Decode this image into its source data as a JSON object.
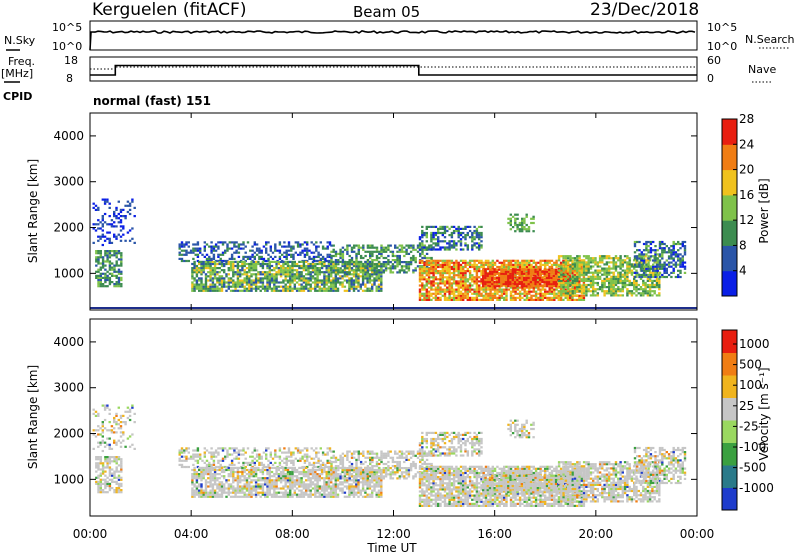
{
  "header": {
    "station": "Kerguelen (fitACF)",
    "beam": "Beam 05",
    "date": "23/Dec/2018"
  },
  "labels": {
    "nsky": "N.Sky",
    "nsearch": "N.Search",
    "freq_line1": "Freq.",
    "freq_line2": "[MHz]",
    "nave": "Nave",
    "cpid": "CPID",
    "cpid_value": "normal (fast) 151",
    "nsky_ticks": [
      "10^5",
      "10^0"
    ],
    "nsearch_ticks": [
      "10^5",
      "10^0"
    ],
    "freq_ticks": [
      "18",
      "8"
    ],
    "nave_ticks": [
      "60",
      "0"
    ]
  },
  "chart_data": [
    {
      "type": "heatmap",
      "name": "power",
      "ylabel": "Slant Range [km]",
      "xlabel": "Time UT",
      "x_ticks": [
        "00:00",
        "04:00",
        "08:00",
        "12:00",
        "16:00",
        "20:00",
        "00:00"
      ],
      "y_ticks": [
        "1000",
        "2000",
        "3000",
        "4000"
      ],
      "xlim": [
        0,
        24
      ],
      "ylim": [
        200,
        4500
      ],
      "colorbar": {
        "label": "Power [dB]",
        "ticks": [
          "4",
          "8",
          "12",
          "16",
          "20",
          "24",
          "28"
        ],
        "colors": [
          "#0a1fe6",
          "#2a55a8",
          "#3c8c50",
          "#7fc24a",
          "#f0c21e",
          "#f07d14",
          "#e81e10"
        ]
      }
    },
    {
      "type": "heatmap",
      "name": "velocity",
      "ylabel": "Slant Range [km]",
      "xlabel": "Time UT",
      "x_ticks": [
        "00:00",
        "04:00",
        "08:00",
        "12:00",
        "16:00",
        "20:00",
        "00:00"
      ],
      "y_ticks": [
        "1000",
        "2000",
        "3000",
        "4000"
      ],
      "xlim": [
        0,
        24
      ],
      "ylim": [
        200,
        4500
      ],
      "colorbar": {
        "label": "Velocity [m s⁻¹]",
        "ticks": [
          "1000",
          "500",
          "100",
          "25",
          "-25",
          "-100",
          "-500",
          "-1000"
        ],
        "colors": [
          "#1e3ccc",
          "#2a7a8a",
          "#3aa040",
          "#9ad860",
          "#c6c6c6",
          "#f0b41e",
          "#f07d14",
          "#e81e10"
        ]
      }
    }
  ],
  "axis": {
    "time_label": "Time UT"
  }
}
